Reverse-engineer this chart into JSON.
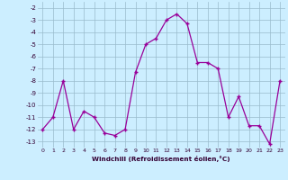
{
  "x": [
    0,
    1,
    2,
    3,
    4,
    5,
    6,
    7,
    8,
    9,
    10,
    11,
    12,
    13,
    14,
    15,
    16,
    17,
    18,
    19,
    20,
    21,
    22,
    23
  ],
  "y": [
    -12,
    -11,
    -8,
    -12,
    -10.5,
    -11,
    -12.3,
    -12.5,
    -12,
    -7.3,
    -5,
    -4.5,
    -3,
    -2.5,
    -3.3,
    -6.5,
    -6.5,
    -7,
    -11,
    -9.3,
    -11.7,
    -11.7,
    -13.2,
    -8
  ],
  "xlabel": "Windchill (Refroidissement éolien,°C)",
  "ylim": [
    -13.5,
    -1.5
  ],
  "xlim": [
    -0.5,
    23.5
  ],
  "yticks": [
    -2,
    -3,
    -4,
    -5,
    -6,
    -7,
    -8,
    -9,
    -10,
    -11,
    -12,
    -13
  ],
  "xticks": [
    0,
    1,
    2,
    3,
    4,
    5,
    6,
    7,
    8,
    9,
    10,
    11,
    12,
    13,
    14,
    15,
    16,
    17,
    18,
    19,
    20,
    21,
    22,
    23
  ],
  "line_color": "#990099",
  "bg_color": "#cceeff",
  "grid_color": "#99bbcc"
}
